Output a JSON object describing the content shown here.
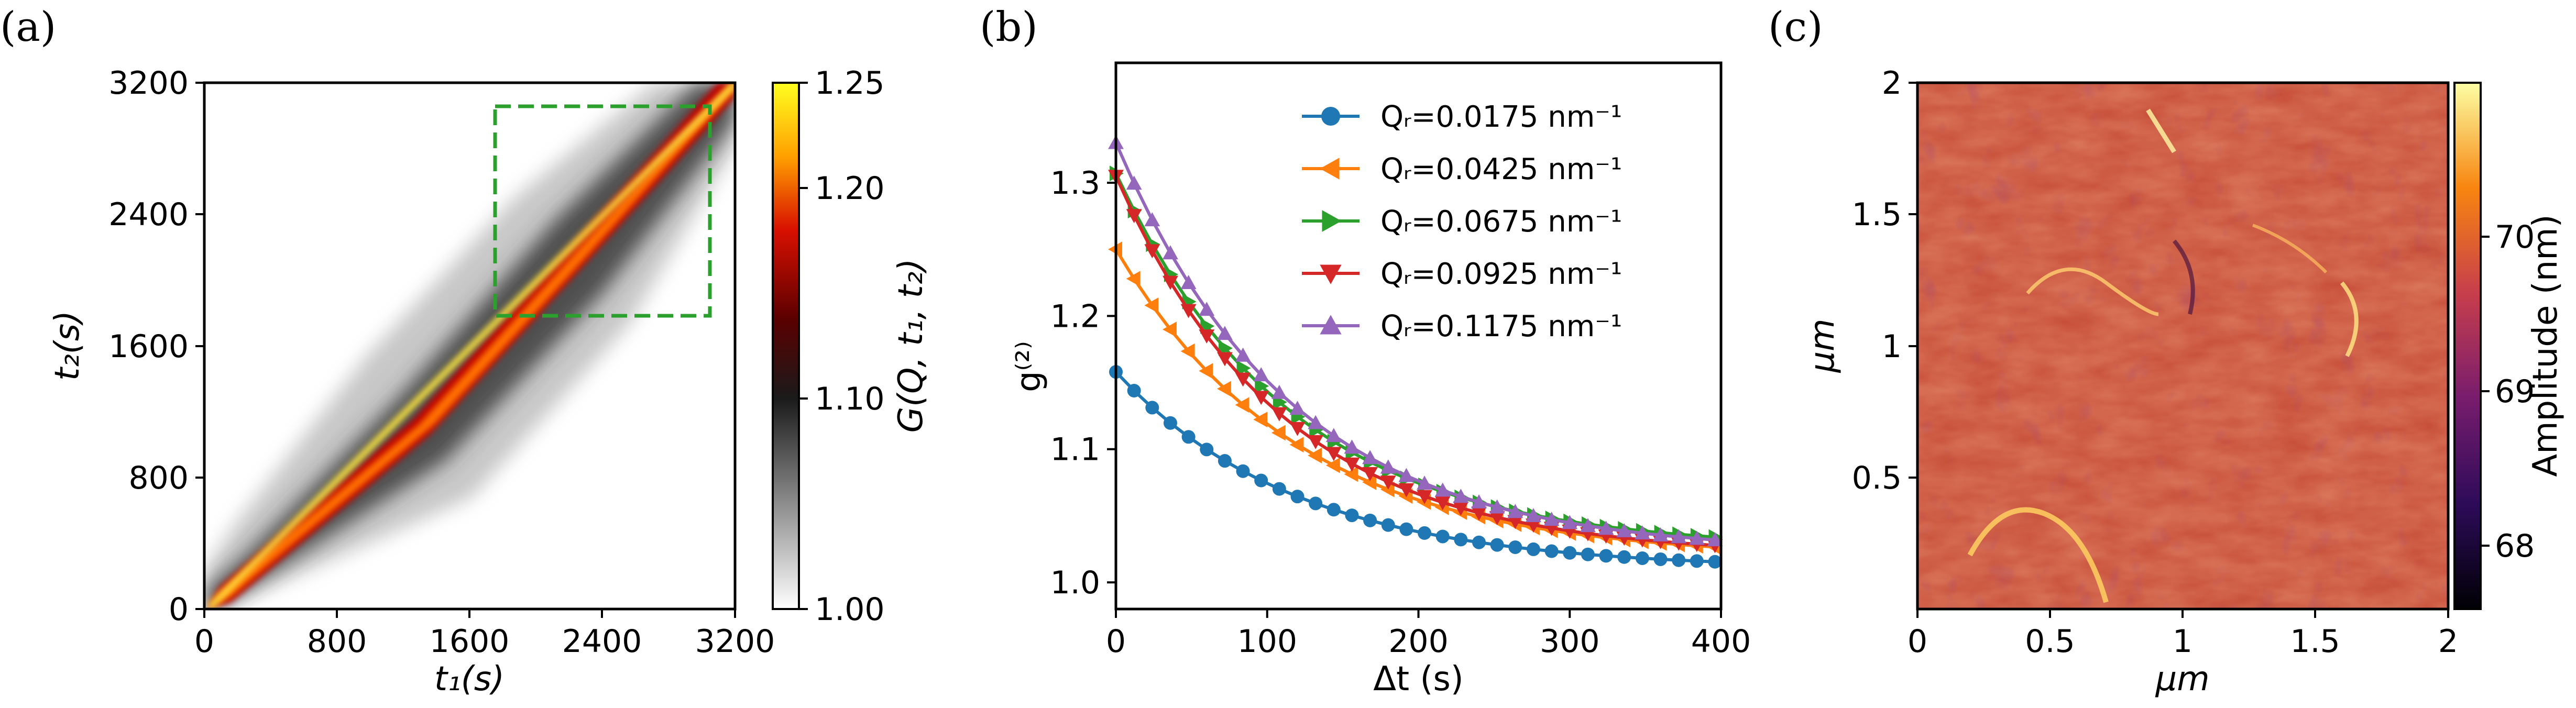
{
  "panels": {
    "a": {
      "label": "(a)",
      "xlabel": "t₁(s)",
      "ylabel": "t₂(s)",
      "xticks": [
        "0",
        "800",
        "1600",
        "2400",
        "3200"
      ],
      "yticks": [
        "0",
        "800",
        "1600",
        "2400",
        "3200"
      ],
      "colorbar_label": "G(Q, t₁, t₂)",
      "colorbar_ticks": [
        "1.00",
        "1.10",
        "1.20",
        "1.25"
      ],
      "box_color": "#2ca02c"
    },
    "b": {
      "label": "(b)"
    },
    "c": {
      "label": "(c)",
      "xlabel": "μm",
      "ylabel": "μm",
      "xticks": [
        "0",
        "0.5",
        "1",
        "1.5",
        "2"
      ],
      "yticks": [
        "0.5",
        "1",
        "1.5",
        "2"
      ],
      "colorbar_label": "Amplitude (nm)",
      "colorbar_ticks": [
        "68",
        "69",
        "70"
      ]
    }
  },
  "chart_data": [
    {
      "type": "heatmap",
      "panel": "a",
      "title": "",
      "xlabel": "t₁(s)",
      "ylabel": "t₂(s)",
      "xlim": [
        0,
        3200
      ],
      "ylim": [
        0,
        3200
      ],
      "colorbar": {
        "label": "G(Q, t₁, t₂)",
        "range": [
          1.0,
          1.25
        ],
        "ticks": [
          1.0,
          1.1,
          1.2,
          1.25
        ],
        "colormap": "gray-to-hot"
      },
      "description_values": {
        "diagonal_peak": 1.25,
        "background": 1.0
      },
      "annotation_box": {
        "x_range": [
          1750,
          3080
        ],
        "y_range": [
          1750,
          3080
        ],
        "style": "dashed",
        "color": "#2ca02c"
      }
    },
    {
      "type": "line",
      "panel": "b",
      "xlabel": "Δt (s)",
      "ylabel": "g⁽²⁾",
      "xlim": [
        0,
        400
      ],
      "ylim": [
        0.98,
        1.39
      ],
      "xticks": [
        0,
        100,
        200,
        300,
        400
      ],
      "yticks": [
        1.0,
        1.1,
        1.2,
        1.3
      ],
      "legend_position": "top-right",
      "series": [
        {
          "name": "Qᵣ=0.0175 nm⁻¹",
          "color": "#1f77b4",
          "marker": "circle",
          "baseline": 1.01,
          "amplitude": 0.148,
          "tau": 120,
          "marker_step": 12
        },
        {
          "name": "Qᵣ=0.0425 nm⁻¹",
          "color": "#ff7f0e",
          "marker": "triangle-left",
          "baseline": 1.018,
          "amplitude": 0.232,
          "tau": 120,
          "marker_step": 12
        },
        {
          "name": "Qᵣ=0.0675 nm⁻¹",
          "color": "#2ca02c",
          "marker": "triangle-right",
          "baseline": 1.025,
          "amplitude": 0.282,
          "tau": 115,
          "marker_step": 12
        },
        {
          "name": "Qᵣ=0.0925 nm⁻¹",
          "color": "#d62728",
          "marker": "triangle-down",
          "baseline": 1.02,
          "amplitude": 0.285,
          "tau": 110,
          "marker_step": 12
        },
        {
          "name": "Qᵣ=0.1175 nm⁻¹",
          "color": "#9467bd",
          "marker": "triangle-up",
          "baseline": 1.022,
          "amplitude": 0.308,
          "tau": 115,
          "marker_step": 12
        }
      ]
    },
    {
      "type": "heatmap",
      "panel": "c",
      "xlabel": "μm",
      "ylabel": "μm",
      "xlim": [
        0,
        2
      ],
      "ylim": [
        0,
        2
      ],
      "colorbar": {
        "label": "Amplitude (nm)",
        "ticks": [
          68,
          69,
          70
        ],
        "range": [
          67.4,
          70.8
        ],
        "colormap": "inferno"
      }
    }
  ]
}
